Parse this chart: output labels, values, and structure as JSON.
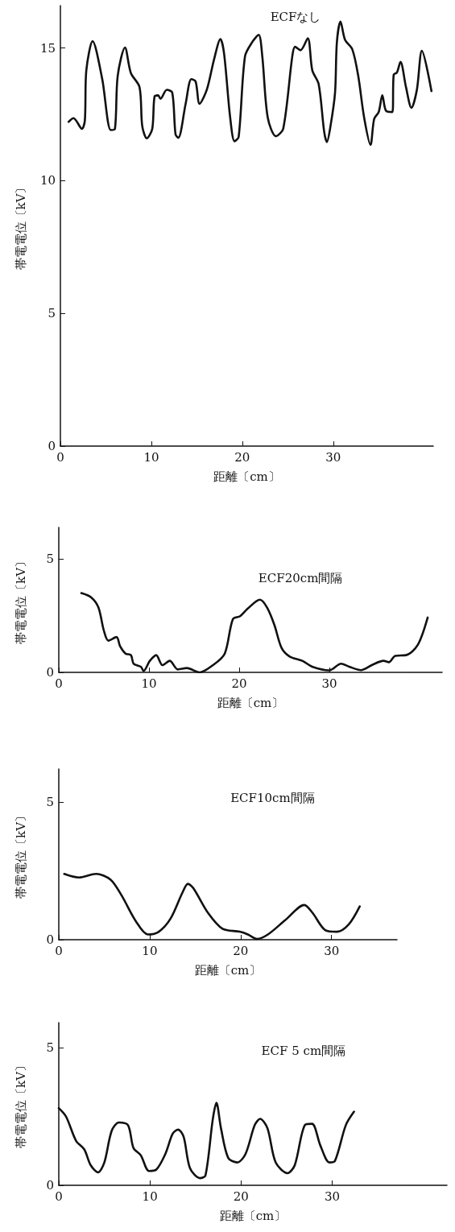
{
  "chart_data": [
    {
      "type": "line",
      "title": "ECFなし",
      "xlabel": "距離〔cm〕",
      "ylabel": "帯電電位〔kV〕",
      "xlim": [
        0,
        41
      ],
      "xticks": [
        0,
        10,
        20,
        30
      ],
      "ylim": [
        0,
        16.6
      ],
      "yticks": [
        0,
        5,
        10,
        15
      ],
      "grid": false,
      "marker": "none",
      "line_style": "solid",
      "x": [
        0.9,
        1.44,
        2.37,
        2.69,
        2.85,
        3.54,
        4.59,
        5.54,
        6.0,
        6.3,
        7.1,
        7.75,
        8.7,
        9.0,
        9.5,
        10.1,
        10.35,
        10.75,
        11.0,
        11.7,
        12.3,
        12.66,
        12.97,
        13.77,
        14.4,
        14.87,
        15.3,
        16.1,
        16.9,
        17.6,
        18.0,
        18.67,
        19.15,
        19.6,
        20.3,
        21.1,
        21.8,
        22.2,
        22.8,
        23.7,
        24.5,
        25.5,
        25.8,
        26.4,
        27.2,
        27.7,
        28.4,
        29.0,
        29.3,
        29.7,
        30.2,
        30.4,
        30.8,
        31.3,
        32.1,
        32.75,
        33.4,
        34.1,
        34.5,
        35.0,
        35.4,
        35.8,
        36.5,
        36.65,
        37.0,
        37.4,
        38.0,
        38.6,
        39.2,
        39.75,
        40.8
      ],
      "series": [
        {
          "color": "#111111",
          "values": [
            12.22,
            12.36,
            11.96,
            12.27,
            14.16,
            15.26,
            13.85,
            11.91,
            11.96,
            13.95,
            15.02,
            14.06,
            13.53,
            12.06,
            11.6,
            11.96,
            13.17,
            13.22,
            13.09,
            13.43,
            13.32,
            11.75,
            11.62,
            12.9,
            13.83,
            13.74,
            12.9,
            13.43,
            14.58,
            15.34,
            14.79,
            12.38,
            11.49,
            11.65,
            14.69,
            15.23,
            15.5,
            14.69,
            12.38,
            11.68,
            11.96,
            14.69,
            15.05,
            14.92,
            15.37,
            14.16,
            13.64,
            11.86,
            11.46,
            12.06,
            13.32,
            15.21,
            16.0,
            15.31,
            14.95,
            13.95,
            12.38,
            11.35,
            12.33,
            12.59,
            13.22,
            12.64,
            12.59,
            14.0,
            14.08,
            14.48,
            13.53,
            12.75,
            13.43,
            14.9,
            13.38
          ]
        }
      ]
    },
    {
      "type": "line",
      "title": "ECF20cm間隔",
      "xlabel": "距離〔cm〕",
      "ylabel": "帯電電位〔kV〕",
      "xlim": [
        0,
        42.5
      ],
      "xticks": [
        0,
        10,
        20,
        30
      ],
      "ylim": [
        0,
        6.4
      ],
      "yticks": [
        0,
        5
      ],
      "grid": false,
      "marker": "none",
      "line_style": "solid",
      "x": [
        2.5,
        3.6,
        4.4,
        5.0,
        5.5,
        6.4,
        6.8,
        7.4,
        8.0,
        8.3,
        9.1,
        9.4,
        10.1,
        10.8,
        11.5,
        12.3,
        13.2,
        14.2,
        15.6,
        17.1,
        18.4,
        19.3,
        20.1,
        20.9,
        22.3,
        23.1,
        23.9,
        24.7,
        25.6,
        27.0,
        28.1,
        30.0,
        31.3,
        32.2,
        33.5,
        34.7,
        36.0,
        36.6,
        37.3,
        38.5,
        39.8,
        40.9
      ],
      "series": [
        {
          "color": "#111111",
          "values": [
            3.5,
            3.31,
            2.86,
            1.84,
            1.4,
            1.56,
            1.15,
            0.83,
            0.76,
            0.38,
            0.25,
            0.06,
            0.51,
            0.76,
            0.32,
            0.51,
            0.13,
            0.19,
            0,
            0.32,
            0.83,
            2.35,
            2.48,
            2.8,
            3.21,
            2.86,
            2.1,
            1.08,
            0.7,
            0.51,
            0.25,
            0.09,
            0.38,
            0.25,
            0.1,
            0.32,
            0.51,
            0.45,
            0.73,
            0.76,
            1.21,
            2.42
          ]
        }
      ]
    },
    {
      "type": "line",
      "title": "ECF10cm間隔",
      "xlabel": "距離〔cm〕",
      "ylabel": "帯電電位〔kV〕",
      "xlim": [
        0,
        37.2
      ],
      "xticks": [
        0,
        10,
        20,
        30
      ],
      "ylim": [
        0,
        6.2
      ],
      "yticks": [
        0,
        5
      ],
      "grid": false,
      "marker": "none",
      "line_style": "solid",
      "x": [
        0.6,
        2.2,
        4.1,
        5.7,
        6.9,
        8.5,
        9.8,
        11.0,
        12.3,
        13.6,
        14.2,
        14.8,
        16.4,
        18.0,
        19.9,
        20.8,
        21.8,
        23.0,
        24.9,
        27.0,
        27.9,
        29.3,
        30.6,
        31.9,
        33.1
      ],
      "series": [
        {
          "color": "#111111",
          "values": [
            2.39,
            2.26,
            2.39,
            2.18,
            1.61,
            0.66,
            0.19,
            0.29,
            0.77,
            1.71,
            2.03,
            1.87,
            0.98,
            0.4,
            0.29,
            0.19,
            0.03,
            0.19,
            0.71,
            1.26,
            0.98,
            0.35,
            0.29,
            0.56,
            1.21
          ]
        }
      ]
    },
    {
      "type": "line",
      "title": "ECF 5 cm間隔",
      "xlabel": "距離〔cm〕",
      "ylabel": "帯電電位〔kV〕",
      "xlim": [
        0,
        42.6
      ],
      "xticks": [
        0,
        10,
        20,
        30
      ],
      "ylim": [
        0,
        5.9
      ],
      "yticks": [
        0,
        5
      ],
      "grid": false,
      "marker": "none",
      "line_style": "solid",
      "x": [
        0,
        0.8,
        1.9,
        2.8,
        3.5,
        4.3,
        5.0,
        5.8,
        6.6,
        7.6,
        8.2,
        9.0,
        9.9,
        10.7,
        11.7,
        12.5,
        13.1,
        13.7,
        14.4,
        15.5,
        16.1,
        16.9,
        17.3,
        17.8,
        18.6,
        19.6,
        20.5,
        21.5,
        22.1,
        22.9,
        23.8,
        25.1,
        25.9,
        27.0,
        27.8,
        28.7,
        29.7,
        30.3,
        31.5,
        32.4
      ],
      "series": [
        {
          "color": "#111111",
          "values": [
            2.8,
            2.49,
            1.61,
            1.3,
            0.73,
            0.47,
            0.83,
            1.97,
            2.28,
            2.18,
            1.35,
            1.09,
            0.52,
            0.57,
            1.14,
            1.87,
            2.02,
            1.76,
            0.62,
            0.26,
            0.36,
            2.39,
            2.99,
            2.07,
            0.99,
            0.83,
            1.14,
            2.18,
            2.41,
            2.07,
            0.83,
            0.44,
            0.73,
            2.18,
            2.23,
            1.45,
            0.83,
            0.88,
            2.18,
            2.67
          ]
        }
      ]
    }
  ]
}
